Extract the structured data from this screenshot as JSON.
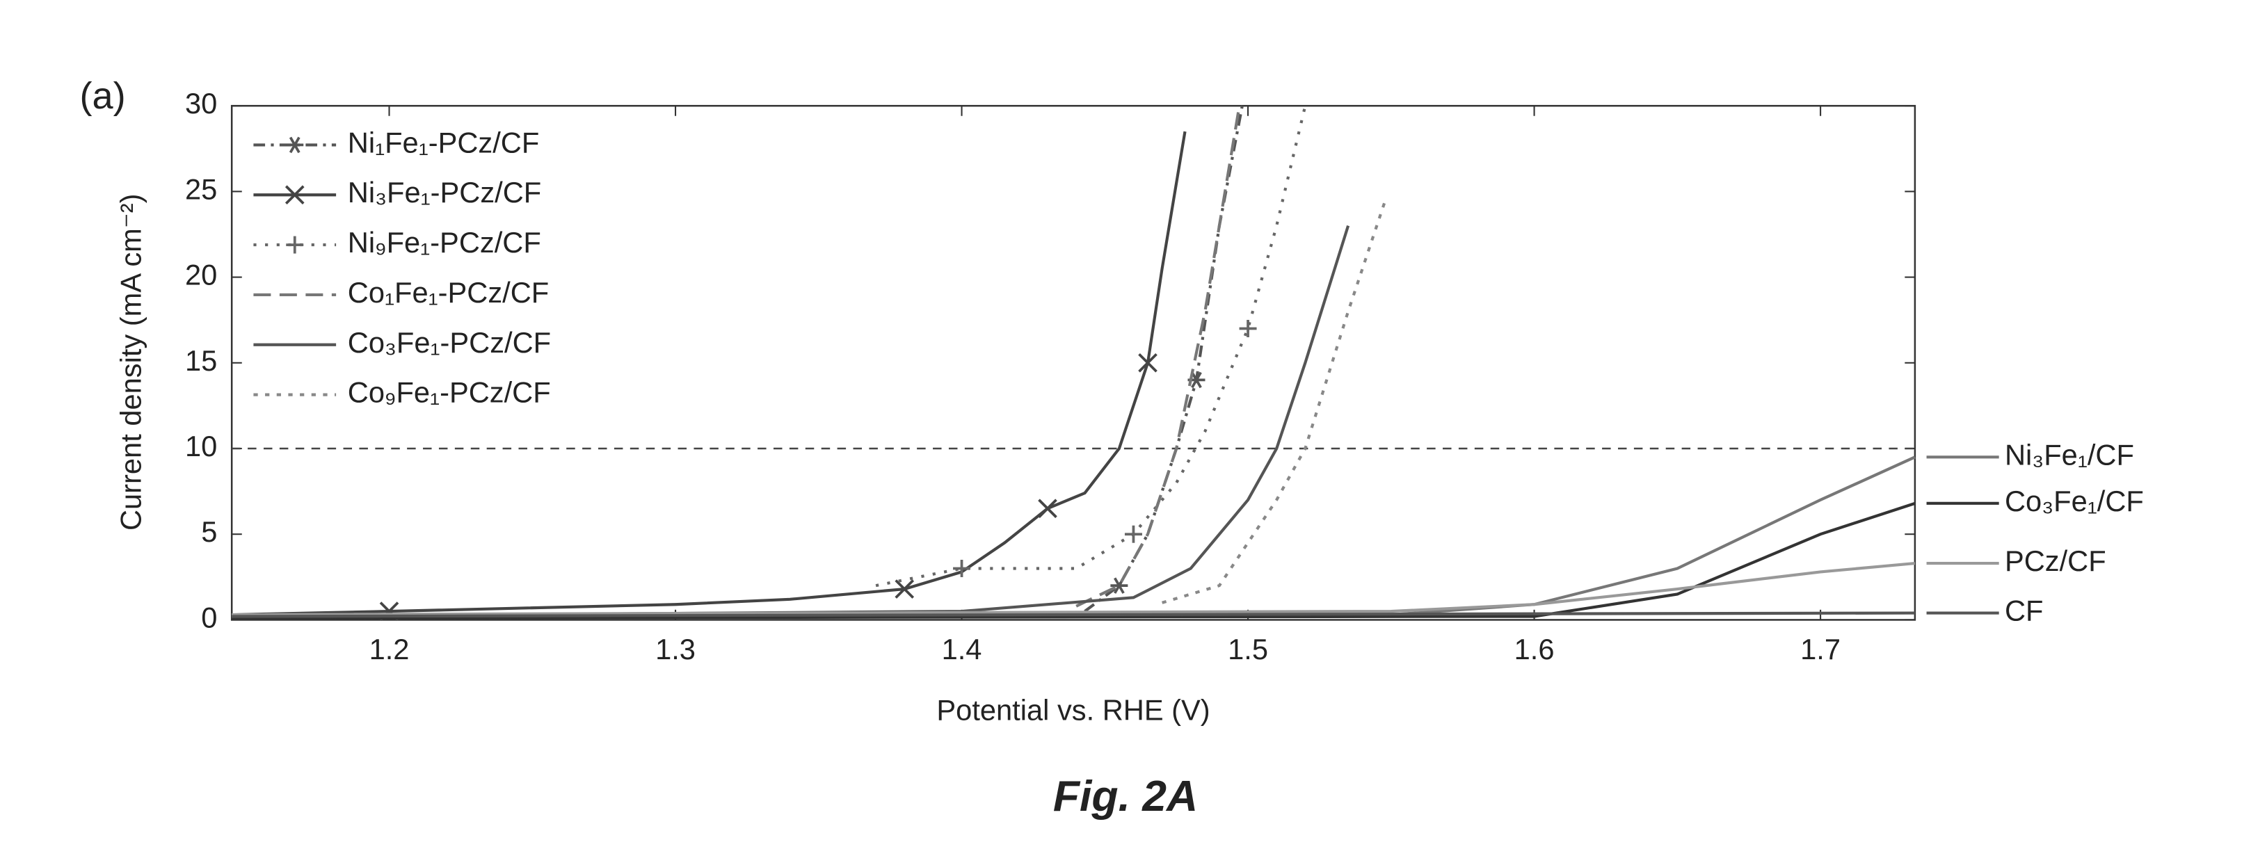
{
  "chart_data": {
    "type": "line",
    "panel_label": "(a)",
    "caption": "Fig. 2A",
    "xlabel": "Potential vs. RHE (V)",
    "ylabel": "Current density (mA cm⁻²)",
    "xlim": [
      1.145,
      1.733
    ],
    "ylim": [
      0,
      30
    ],
    "xticks": [
      1.2,
      1.3,
      1.4,
      1.5,
      1.6,
      1.7
    ],
    "yticks": [
      0,
      5,
      10,
      15,
      20,
      25,
      30
    ],
    "hline": 10,
    "legend": "upper left",
    "series": [
      {
        "name": "Ni₁Fe₁-PCz/CF",
        "color": "#555555",
        "dash": "8 4 2 4",
        "marker": "star",
        "x": [
          1.443,
          1.455,
          1.465,
          1.475,
          1.482,
          1.49,
          1.498
        ],
        "values": [
          0.5,
          2,
          5,
          10,
          14,
          23,
          30
        ]
      },
      {
        "name": "Ni₃Fe₁-PCz/CF",
        "color": "#444444",
        "dash": "none",
        "marker": "x",
        "x": [
          1.145,
          1.2,
          1.3,
          1.34,
          1.38,
          1.4,
          1.415,
          1.43,
          1.443,
          1.455,
          1.465,
          1.47,
          1.478
        ],
        "values": [
          0.3,
          0.5,
          0.9,
          1.2,
          1.8,
          2.8,
          4.5,
          6.5,
          7.4,
          10,
          15,
          20.5,
          28.5
        ]
      },
      {
        "name": "Ni₉Fe₁-PCz/CF",
        "color": "#666666",
        "dash": "2 6",
        "marker": "plus",
        "x": [
          1.37,
          1.4,
          1.418,
          1.44,
          1.46,
          1.475,
          1.485,
          1.5,
          1.51,
          1.52
        ],
        "values": [
          2,
          3,
          3,
          3,
          5,
          8,
          11,
          17,
          23,
          30
        ]
      },
      {
        "name": "Co₁Fe₁-PCz/CF",
        "color": "#777777",
        "dash": "12 6",
        "marker": "none",
        "x": [
          1.44,
          1.455,
          1.465,
          1.475,
          1.485,
          1.497
        ],
        "values": [
          0.8,
          2,
          5,
          10,
          18,
          30
        ]
      },
      {
        "name": "Co₃Fe₁-PCz/CF",
        "color": "#555555",
        "dash": "none",
        "marker": "none",
        "x": [
          1.145,
          1.4,
          1.46,
          1.48,
          1.5,
          1.51,
          1.52,
          1.535
        ],
        "values": [
          0.2,
          0.5,
          1.3,
          3,
          7,
          10,
          15,
          23
        ]
      },
      {
        "name": "Co₉Fe₁-PCz/CF",
        "color": "#888888",
        "dash": "3 5",
        "marker": "none",
        "x": [
          1.47,
          1.49,
          1.51,
          1.52,
          1.535,
          1.548
        ],
        "values": [
          1,
          2,
          7,
          10,
          18,
          24.5
        ]
      },
      {
        "name": "Ni₃Fe₁/CF",
        "color": "#777777",
        "dash": "none",
        "marker": "none",
        "direct_label": true,
        "x": [
          1.145,
          1.55,
          1.6,
          1.65,
          1.7,
          1.733
        ],
        "values": [
          0.2,
          0.3,
          0.9,
          3,
          7,
          9.5
        ]
      },
      {
        "name": "Co₃Fe₁/CF",
        "color": "#333333",
        "dash": "none",
        "marker": "none",
        "direct_label": true,
        "x": [
          1.145,
          1.6,
          1.65,
          1.7,
          1.733
        ],
        "values": [
          0.1,
          0.2,
          1.5,
          5,
          6.8
        ]
      },
      {
        "name": "PCz/CF",
        "color": "#999999",
        "dash": "none",
        "marker": "none",
        "direct_label": true,
        "x": [
          1.145,
          1.55,
          1.6,
          1.65,
          1.7,
          1.733
        ],
        "values": [
          0.3,
          0.5,
          0.9,
          1.8,
          2.8,
          3.3
        ]
      },
      {
        "name": "CF",
        "color": "#555555",
        "dash": "none",
        "marker": "none",
        "direct_label": true,
        "x": [
          1.145,
          1.733
        ],
        "values": [
          0.2,
          0.4
        ]
      }
    ]
  }
}
